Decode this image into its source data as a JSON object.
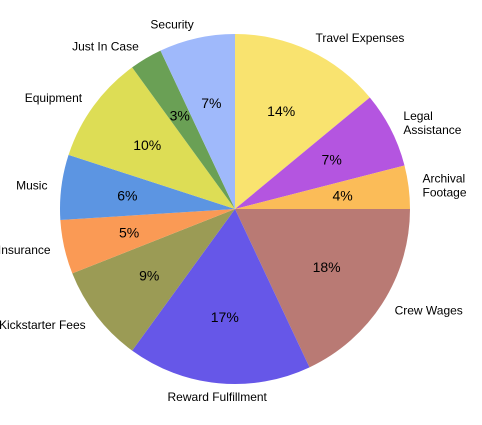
{
  "chart_data": {
    "type": "pie",
    "start_angle_deg": 0,
    "direction": "clockwise",
    "slices": [
      {
        "label": "Travel Expenses",
        "value": 14,
        "pct_label": "14%",
        "color": "#f9e36f"
      },
      {
        "label": "Legal Assistance",
        "value": 7,
        "pct_label": "7%",
        "color": "#b455e0"
      },
      {
        "label": "Archival Footage",
        "value": 4,
        "pct_label": "4%",
        "color": "#fbbc58"
      },
      {
        "label": "Crew Wages",
        "value": 18,
        "pct_label": "18%",
        "color": "#b97a74"
      },
      {
        "label": "Reward Fulfillment",
        "value": 17,
        "pct_label": "17%",
        "color": "#6657e8"
      },
      {
        "label": "Kickstarter Fees",
        "value": 9,
        "pct_label": "9%",
        "color": "#9b9b55"
      },
      {
        "label": "Insurance",
        "value": 5,
        "pct_label": "5%",
        "color": "#fa9a55"
      },
      {
        "label": "Music",
        "value": 6,
        "pct_label": "6%",
        "color": "#5c95e2"
      },
      {
        "label": "Equipment",
        "value": 10,
        "pct_label": "10%",
        "color": "#dddd55"
      },
      {
        "label": "Just In Case",
        "value": 3,
        "pct_label": "3%",
        "color": "#6aa055"
      },
      {
        "label": "Security",
        "value": 7,
        "pct_label": "7%",
        "color": "#9fb9fb"
      }
    ]
  }
}
